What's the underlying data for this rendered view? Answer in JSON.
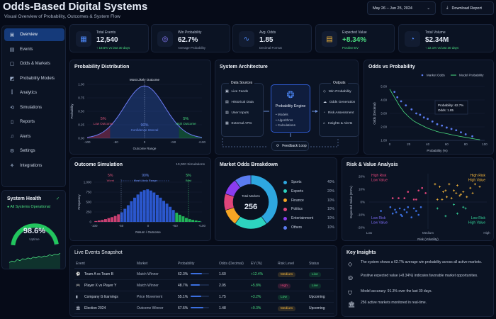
{
  "header": {
    "title": "Odds-Based Digital Systems",
    "subtitle": "Visual Overview of Probability, Outcomes & System Flow",
    "date_range": "May 26 – Jun 25, 2024",
    "download": "Download Report"
  },
  "sidebar": {
    "items": [
      {
        "label": "Overview",
        "icon": "calendar-icon",
        "glyph": "▣"
      },
      {
        "label": "Events",
        "icon": "events-icon",
        "glyph": "▤"
      },
      {
        "label": "Odds & Markets",
        "icon": "market-icon",
        "glyph": "▢"
      },
      {
        "label": "Probability Models",
        "icon": "model-icon",
        "glyph": "◩"
      },
      {
        "label": "Analytics",
        "icon": "analytics-icon",
        "glyph": "⫿"
      },
      {
        "label": "Simulations",
        "icon": "simulation-icon",
        "glyph": "⟲"
      },
      {
        "label": "Reports",
        "icon": "report-icon",
        "glyph": "▯"
      },
      {
        "label": "Alerts",
        "icon": "bell-icon",
        "glyph": "♫"
      },
      {
        "label": "Settings",
        "icon": "gear-icon",
        "glyph": "⚙"
      },
      {
        "label": "Integrations",
        "icon": "integrations-icon",
        "glyph": "⚘"
      }
    ]
  },
  "health": {
    "title": "System Health",
    "status": "All Systems Operational",
    "value": "98.6%",
    "value_fraction": 0.986,
    "label": "Uptime",
    "sparkline": [
      3,
      4,
      3.5,
      5,
      4.2,
      5.5,
      5,
      6,
      5.4,
      6.5,
      6,
      7,
      6.4,
      7.2,
      7,
      8,
      7.5,
      8.4,
      8,
      9
    ]
  },
  "kpis": [
    {
      "label": "Total Events",
      "value": "12,540",
      "sub": "↑ 18.6% vs last 30 days",
      "icon": "calendar-icon",
      "glyph": "▦",
      "color": "#4f8cff"
    },
    {
      "label": "Win Probability",
      "value": "62.7%",
      "sub": "Average Probability",
      "icon": "target-icon",
      "glyph": "◎",
      "color": "#8b7dff"
    },
    {
      "label": "Avg. Odds",
      "value": "1.85",
      "sub": "Decimal Format",
      "icon": "pulse-icon",
      "glyph": "∿",
      "color": "#4f8cff"
    },
    {
      "label": "Expected Value",
      "value": "+8.34%",
      "sub": "Positive EV",
      "icon": "coins-icon",
      "glyph": "▤",
      "color": "#f5b73b",
      "valcolor": "#4ade80"
    },
    {
      "label": "Total Volume",
      "value": "$2.34M",
      "sub": "↑ 22.1% vs last 30 days",
      "icon": "pie-icon",
      "glyph": "◔",
      "color": "#4f8cff"
    }
  ],
  "colors": {
    "accent": "#3b82f6",
    "positive": "#4ade80",
    "negative": "#e0557a",
    "warning": "#f5b73b"
  },
  "architecture": {
    "title": "System Architecture",
    "sources_title": "Data Sources",
    "sources": [
      "Live Feeds",
      "Historical Data",
      "User Inputs",
      "External APIs"
    ],
    "engine": "Probability Engine",
    "engine_items": [
      "• Models",
      "• Algorithms",
      "• Calculations"
    ],
    "outputs_title": "Outputs",
    "outputs": [
      "Win Probability",
      "Odds Generation",
      "Risk Assessment",
      "Insights & Alerts"
    ],
    "feedback": "Feedback Loop"
  },
  "chart_data": [
    {
      "id": "probability-distribution",
      "type": "area",
      "title": "Probability Distribution",
      "xlabel": "Outcome Range",
      "ylabel": "Probability",
      "xlim": [
        -100,
        100
      ],
      "ylim": [
        0,
        1
      ],
      "xticks": [
        "-100",
        "-50",
        "0",
        "+50",
        "+100"
      ],
      "yticks": [
        "0.00",
        "0.25",
        "0.50",
        "0.75",
        "1.00"
      ],
      "peak_label": "Most Likely Outcome",
      "annotations": [
        {
          "pct": "5%",
          "label": "Low Outcome"
        },
        {
          "pct": "90%",
          "label": "Confidence Interval"
        },
        {
          "pct": "5%",
          "label": "High Outcome"
        }
      ],
      "mean": 0,
      "sd": 35
    },
    {
      "id": "odds-vs-probability",
      "type": "scatter",
      "title": "Odds vs Probability",
      "xlabel": "Probability (%)",
      "ylabel": "Odds (Decimal)",
      "xlim": [
        0,
        100
      ],
      "ylim": [
        1,
        5
      ],
      "xticks": [
        "0",
        "20",
        "40",
        "60",
        "80",
        "100"
      ],
      "yticks": [
        "1.00",
        "2.00",
        "3.00",
        "4.00",
        "5.00"
      ],
      "series": [
        {
          "name": "Market Odds",
          "type": "scatter",
          "x": [
            5,
            8,
            12,
            17,
            23,
            28,
            32,
            36,
            40,
            45,
            50,
            55,
            60,
            65,
            70,
            75,
            80,
            87
          ],
          "y": [
            4.6,
            4.2,
            3.9,
            3.6,
            3.3,
            3.0,
            2.9,
            2.7,
            2.6,
            2.4,
            2.2,
            2.1,
            1.95,
            1.85,
            1.75,
            1.6,
            1.45,
            1.3
          ]
        },
        {
          "name": "Model Probability",
          "type": "line",
          "x": [
            0,
            5,
            10,
            15,
            20,
            25,
            30,
            40,
            50,
            60,
            70,
            80,
            90,
            95
          ],
          "y": [
            4.8,
            4.2,
            3.6,
            3.1,
            2.75,
            2.45,
            2.25,
            1.9,
            1.65,
            1.5,
            1.35,
            1.22,
            1.1,
            1.05
          ]
        }
      ],
      "tooltip": [
        "Probability: 62.7%",
        "Odds: 1.85"
      ]
    },
    {
      "id": "outcome-simulation",
      "type": "bar",
      "title": "Outcome Simulation",
      "subtitle": "10,000 Simulations",
      "xlabel": "Return / Outcome",
      "ylabel": "Frequency",
      "xlim": [
        -100,
        100
      ],
      "ylim": [
        0,
        1000
      ],
      "xticks": [
        "-100",
        "-50",
        "0",
        "+50",
        "+100"
      ],
      "yticks": [
        "0",
        "250",
        "500",
        "750",
        "1,000"
      ],
      "bins": [
        -97,
        -91,
        -85,
        -79,
        -73,
        -67,
        -61,
        -55,
        -49,
        -43,
        -37,
        -31,
        -25,
        -19,
        -13,
        -7,
        -1,
        5,
        11,
        17,
        23,
        29,
        35,
        41,
        47,
        53,
        59,
        65,
        71,
        77,
        83,
        89,
        95
      ],
      "values": [
        20,
        35,
        50,
        70,
        95,
        120,
        150,
        190,
        240,
        330,
        420,
        520,
        610,
        690,
        760,
        800,
        820,
        790,
        740,
        680,
        610,
        530,
        460,
        380,
        300,
        230,
        180,
        140,
        100,
        70,
        50,
        35,
        20
      ],
      "annotations": [
        {
          "pct": "5%",
          "label": "Worst"
        },
        {
          "pct": "90%",
          "label": "Most Likely Range"
        },
        {
          "pct": "5%",
          "label": "Best"
        }
      ]
    },
    {
      "id": "market-odds-breakdown",
      "type": "pie",
      "title": "Market Odds Breakdown",
      "center_label": "Total Markets",
      "center_value": "256",
      "slices": [
        {
          "name": "Sports",
          "value": 40,
          "label": "40%",
          "color": "#2ea7e0"
        },
        {
          "name": "Esports",
          "value": 20,
          "label": "20%",
          "color": "#2dd4bf"
        },
        {
          "name": "Finance",
          "value": 10,
          "label": "10%",
          "color": "#f5a524"
        },
        {
          "name": "Politics",
          "value": 10,
          "label": "10%",
          "color": "#e0457a"
        },
        {
          "name": "Entertainment",
          "value": 10,
          "label": "10%",
          "color": "#8b3cf0"
        },
        {
          "name": "Others",
          "value": 10,
          "label": "10%",
          "color": "#5b7cf0"
        }
      ]
    },
    {
      "id": "risk-value",
      "type": "scatter",
      "title": "Risk & Value Analysis",
      "xlabel": "Risk (Volatility)",
      "ylabel": "Expected Value (EV%)",
      "ylim": [
        -20,
        20
      ],
      "xticks": [
        "Low",
        "Medium",
        "High"
      ],
      "yticks": [
        "-20%",
        "-10%",
        "0%",
        "10%",
        "20%"
      ],
      "quadrants": [
        {
          "label": "High Risk\nLow Value",
          "color": "#e0457a"
        },
        {
          "label": "High Risk\nHigh Value",
          "color": "#f5b73b"
        },
        {
          "label": "Low Risk\nLow Value",
          "color": "#7c6cf5"
        },
        {
          "label": "Low Risk\nHigh Value",
          "color": "#34d399"
        }
      ],
      "series": [
        {
          "color": "#e0457a",
          "x": [
            0.2,
            0.25,
            0.3,
            0.38,
            0.42,
            0.45,
            0.48,
            0.4,
            0.33
          ],
          "y": [
            3,
            3,
            3,
            2,
            9,
            11,
            7,
            2,
            8
          ]
        },
        {
          "color": "#f5b73b",
          "x": [
            0.56,
            0.6,
            0.63,
            0.66,
            0.7,
            0.72,
            0.75,
            0.78,
            0.8,
            0.83,
            0.86,
            0.9,
            0.58,
            0.68,
            0.74,
            0.62,
            0.88,
            0.94,
            0.77,
            0.65
          ],
          "y": [
            14,
            12,
            8,
            4,
            3,
            9,
            13,
            6,
            8,
            4,
            11,
            14,
            2,
            14,
            7,
            2,
            7,
            12,
            5,
            9
          ],
          "shape": "plus"
        },
        {
          "color": "#3b6fe0",
          "x": [
            0.1,
            0.18,
            0.2,
            0.23,
            0.26,
            0.28,
            0.3,
            0.33,
            0.36,
            0.4,
            0.44,
            0.22,
            0.27,
            0.32,
            0.38,
            0.42
          ],
          "y": [
            -7,
            -4,
            -9,
            -8,
            -5,
            -11,
            -6,
            -4,
            -12,
            -7,
            -4,
            -6,
            -10,
            -8,
            -5,
            -10
          ]
        },
        {
          "color": "#34d399",
          "x": [
            0.58,
            0.65,
            0.72,
            0.75,
            0.8,
            0.82
          ],
          "y": [
            -5,
            -11,
            -2,
            -9,
            -4,
            -5
          ],
          "shape": "plus"
        }
      ]
    }
  ],
  "live_events": {
    "title": "Live Events Snapshot",
    "columns": [
      "Event",
      "Market",
      "Probability",
      "Odds (Decimal)",
      "EV (%)",
      "Risk Level",
      "Status"
    ],
    "rows": [
      {
        "icon": "soccer-icon",
        "glyph": "⚽",
        "event": "Team A vs Team B",
        "market": "Match Winner",
        "prob": "62.3%",
        "prob_value": 0.623,
        "odds": "1.60",
        "ev": "+12.4%",
        "risk": "Medium",
        "status": "Live"
      },
      {
        "icon": "gamepad-icon",
        "glyph": "🎮",
        "event": "Player X vs Player Y",
        "market": "Match Winner",
        "prob": "48.7%",
        "prob_value": 0.487,
        "odds": "2.05",
        "ev": "+5.8%",
        "risk": "High",
        "status": "Live"
      },
      {
        "icon": "bar-chart-icon",
        "glyph": "▮",
        "event": "Company G Earnings",
        "market": "Price Movement",
        "prob": "55.1%",
        "prob_value": 0.551,
        "odds": "1.75",
        "ev": "+3.2%",
        "risk": "Low",
        "status": "Upcoming"
      },
      {
        "icon": "building-icon",
        "glyph": "🏛",
        "event": "Election 2024",
        "market": "Outcome Winner",
        "prob": "67.6%",
        "prob_value": 0.676,
        "odds": "1.48",
        "ev": "+9.3%",
        "risk": "Medium",
        "status": "Upcoming"
      }
    ]
  },
  "insights": {
    "title": "Key Insights",
    "items": [
      {
        "icon": "target-icon",
        "glyph": "◇",
        "text": "The system shows a 62.7% average win probability across all active markets."
      },
      {
        "icon": "coin-icon",
        "glyph": "◎",
        "text": "Positive expected value (+8.34%) indicates favorable market opportunities."
      },
      {
        "icon": "shield-icon",
        "glyph": "⛉",
        "text": "Model accuracy: 91.3% over the last 30 days."
      },
      {
        "icon": "building-icon",
        "glyph": "🏛",
        "text": "256 active markets monitored in real-time."
      }
    ]
  }
}
